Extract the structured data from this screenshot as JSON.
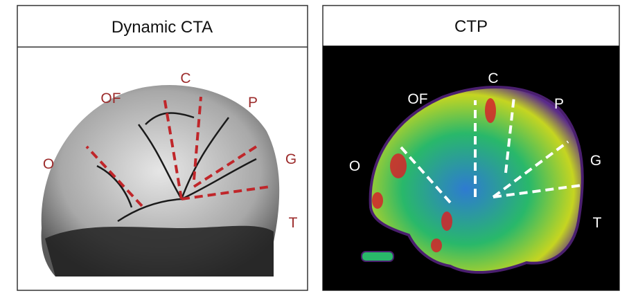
{
  "panels": [
    {
      "title": "Dynamic CTA",
      "labels": {
        "c": "C",
        "of": "OF",
        "p": "P",
        "o": "O",
        "g": "G",
        "t": "T"
      }
    },
    {
      "title": "CTP",
      "labels": {
        "c": "C",
        "of": "OF",
        "p": "P",
        "o": "O",
        "g": "G",
        "t": "T"
      }
    }
  ]
}
